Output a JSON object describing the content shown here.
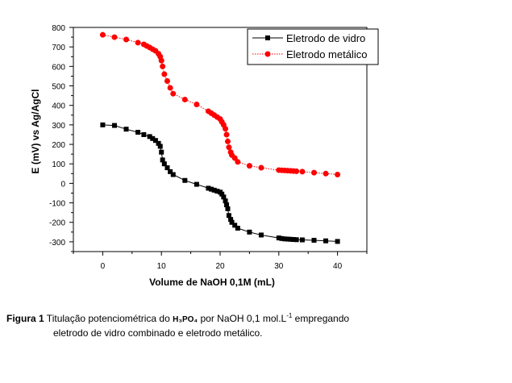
{
  "chart_data": {
    "type": "scatter",
    "xlabel": "Volume de NaOH 0,1M (mL)",
    "ylabel": "E (mV) vs Ag/AgCl",
    "xlim": [
      -5,
      45
    ],
    "ylim": [
      -350,
      800
    ],
    "xticks": [
      0,
      10,
      20,
      30,
      40
    ],
    "xtick_labels": [
      "0",
      "10",
      "20",
      "30",
      "40"
    ],
    "yticks": [
      -300,
      -200,
      -100,
      0,
      100,
      200,
      300,
      400,
      500,
      600,
      700,
      800
    ],
    "ytick_labels": [
      "-300",
      "-200",
      "-100",
      "0",
      "100",
      "200",
      "300",
      "400",
      "500",
      "600",
      "700",
      "800"
    ],
    "grid": false,
    "legend_position": "top-right",
    "series": [
      {
        "name": "Eletrodo de vidro",
        "color": "#000000",
        "marker": "square",
        "line_style": "solid",
        "x": [
          0,
          2,
          4,
          6,
          7,
          8,
          8.5,
          9,
          9.5,
          9.8,
          10,
          10.2,
          10.5,
          11,
          11.5,
          12,
          14,
          16,
          18,
          18.5,
          19,
          19.5,
          20,
          20.3,
          20.6,
          20.9,
          21.1,
          21.3,
          21.5,
          21.8,
          22,
          22.5,
          23,
          25,
          27,
          30,
          30.5,
          31,
          31.5,
          32,
          32.5,
          33,
          34,
          36,
          38,
          40
        ],
        "y": [
          300,
          297,
          278,
          262,
          250,
          240,
          230,
          220,
          205,
          190,
          160,
          120,
          100,
          80,
          60,
          45,
          15,
          -5,
          -25,
          -30,
          -35,
          -40,
          -45,
          -55,
          -70,
          -90,
          -110,
          -130,
          -165,
          -185,
          -200,
          -215,
          -230,
          -250,
          -265,
          -280,
          -283,
          -285,
          -286,
          -287,
          -288,
          -289,
          -290,
          -292,
          -295,
          -298
        ]
      },
      {
        "name": "Eletrodo metálico",
        "color": "#ff0000",
        "marker": "circle",
        "line_style": "dotted",
        "x": [
          0,
          2,
          4,
          6,
          7,
          7.5,
          8,
          8.5,
          9,
          9.5,
          9.8,
          10,
          10.2,
          10.5,
          11,
          11.5,
          12,
          14,
          16,
          18,
          18.5,
          19,
          19.5,
          20,
          20.3,
          20.6,
          20.9,
          21.1,
          21.3,
          21.5,
          21.8,
          22,
          22.5,
          23,
          25,
          27,
          30,
          30.5,
          31,
          31.5,
          32,
          32.5,
          33,
          34,
          36,
          38,
          40
        ],
        "y": [
          762,
          750,
          738,
          722,
          713,
          705,
          697,
          688,
          680,
          665,
          650,
          630,
          600,
          560,
          525,
          490,
          460,
          430,
          405,
          370,
          360,
          350,
          340,
          330,
          315,
          300,
          280,
          250,
          215,
          185,
          160,
          145,
          130,
          110,
          90,
          80,
          68,
          67,
          66,
          65,
          64,
          63,
          62,
          60,
          55,
          50,
          45
        ]
      }
    ]
  },
  "caption": {
    "label": "Figura 1",
    "text_before_formula": " Titulação potenciométrica do ",
    "formula": "H₃PO₄",
    "text_middle": " por NaOH 0,1 mol.L",
    "superscript": "-1",
    "text_after": " empregando",
    "line2": "eletrodo de vidro combinado e eletrodo metálico."
  }
}
